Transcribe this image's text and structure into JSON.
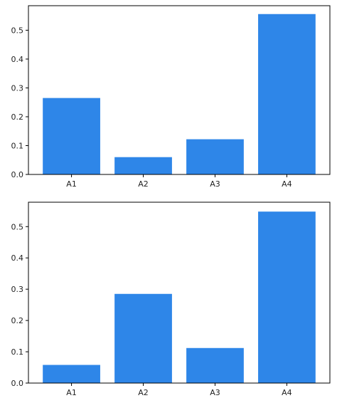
{
  "chart_data": [
    {
      "type": "bar",
      "categories": [
        "A1",
        "A2",
        "A3",
        "A4"
      ],
      "values": [
        0.265,
        0.06,
        0.122,
        0.556
      ],
      "ylim": [
        0,
        0.585
      ],
      "yticks": [
        0.0,
        0.1,
        0.2,
        0.3,
        0.4,
        0.5
      ],
      "ytick_labels": [
        "0.0",
        "0.1",
        "0.2",
        "0.3",
        "0.4",
        "0.5"
      ],
      "bar_color": "#2e86e8",
      "grid": false,
      "title": "",
      "xlabel": "",
      "ylabel": ""
    },
    {
      "type": "bar",
      "categories": [
        "A1",
        "A2",
        "A3",
        "A4"
      ],
      "values": [
        0.058,
        0.285,
        0.112,
        0.548
      ],
      "ylim": [
        0,
        0.578
      ],
      "yticks": [
        0.0,
        0.1,
        0.2,
        0.3,
        0.4,
        0.5
      ],
      "ytick_labels": [
        "0.0",
        "0.1",
        "0.2",
        "0.3",
        "0.4",
        "0.5"
      ],
      "bar_color": "#2e86e8",
      "grid": false,
      "title": "",
      "xlabel": "",
      "ylabel": ""
    }
  ]
}
